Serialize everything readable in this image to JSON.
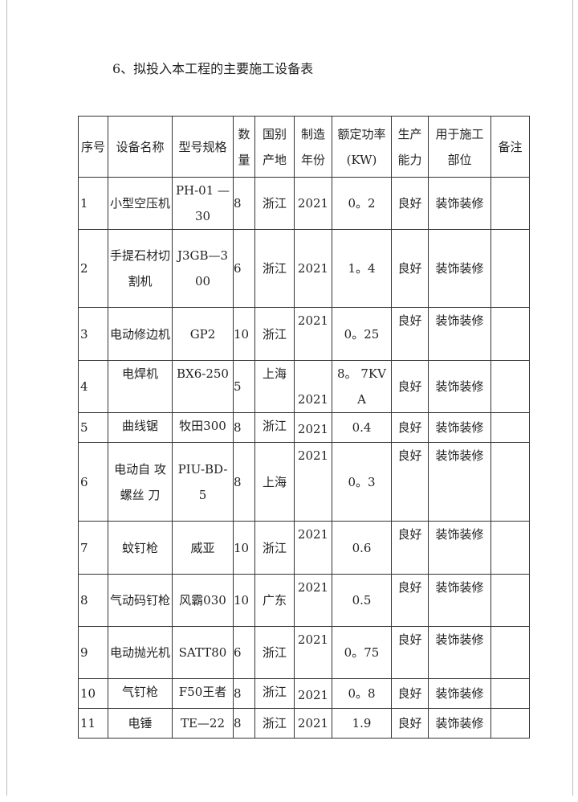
{
  "title": "6、拟投入本工程的主要施工设备表",
  "table": {
    "headers": [
      "序号",
      "设备名称",
      "型号规格",
      "数量",
      "国别产地",
      "制造年份",
      "额定功率(KW)",
      "生产能力",
      "用于施工部位",
      "备注"
    ],
    "rows": [
      [
        "1",
        "小型空压机",
        "PH-01 —30",
        "8",
        "浙江",
        "2021",
        "0。2",
        "良好",
        "装饰装修",
        ""
      ],
      [
        "2",
        "手提石材切割机",
        "J3GB—300",
        "6",
        "浙江",
        "2021",
        "1。4",
        "良好",
        "装饰装修",
        ""
      ],
      [
        "3",
        "电动修边机",
        "GP2",
        "10",
        "浙江",
        "2021",
        "0。25",
        "良好",
        "装饰装修",
        ""
      ],
      [
        "4",
        "电焊机",
        "BX6-250",
        "5",
        "上海",
        "2021",
        "8。 7KVA",
        "良好",
        "装饰装修",
        ""
      ],
      [
        "5",
        "曲线锯",
        "牧田300",
        "8",
        "浙江",
        "2021",
        "0.4",
        "良好",
        "装饰装修",
        ""
      ],
      [
        "6",
        "电动自 攻螺丝 刀",
        "PIU-BD-5",
        "8",
        "上海",
        "2021",
        "0。3",
        "良好",
        "装饰装修",
        ""
      ],
      [
        "7",
        "蚊钉枪",
        "威亚",
        "10",
        "浙江",
        "2021",
        "0.6",
        "良好",
        "装饰装修",
        ""
      ],
      [
        "8",
        "气动码钉枪",
        "风霸030",
        "10",
        "广东",
        "2021",
        "0.5",
        "良好",
        "装饰装修",
        ""
      ],
      [
        "9",
        "电动抛光机",
        "SATT80",
        "6",
        "浙江",
        "2021",
        "0。75",
        "良好",
        "装饰装修",
        ""
      ],
      [
        "10",
        "气钉枪",
        "F50王者",
        "8",
        "浙江",
        "2021",
        "0。8",
        "良好",
        "装饰装修",
        ""
      ],
      [
        "11",
        "电锤",
        "TE—22",
        "8",
        "浙江",
        "2021",
        "1.9",
        "良好",
        "装饰装修",
        ""
      ]
    ]
  }
}
